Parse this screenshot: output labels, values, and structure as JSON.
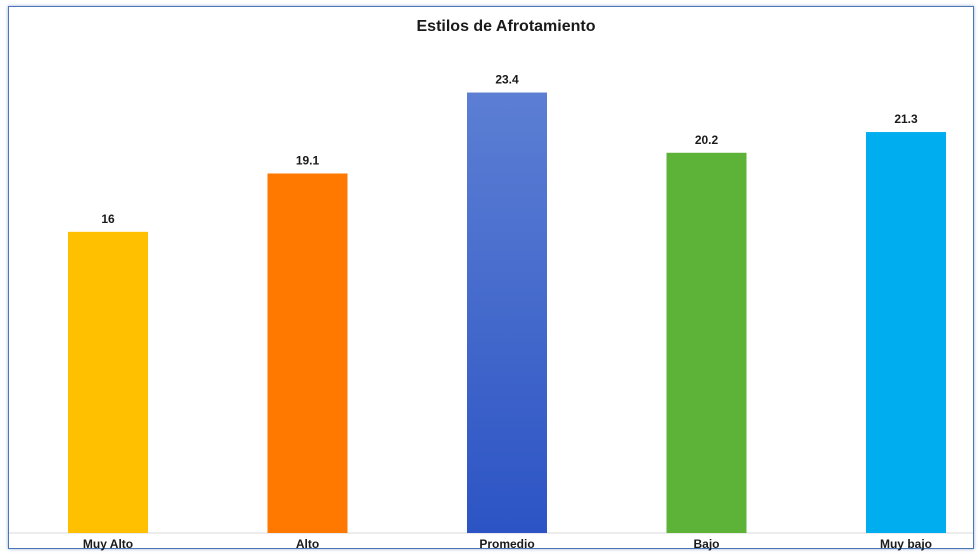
{
  "chart_data": {
    "type": "bar",
    "title": "Estilos de Afrotamiento",
    "categories": [
      "Muy Alto",
      "Alto",
      "Promedio",
      "Bajo",
      "Muy bajo"
    ],
    "values": [
      16,
      19.1,
      23.4,
      20.2,
      21.3
    ],
    "value_labels": [
      "16",
      "19.1",
      "23.4",
      "20.2",
      "21.3"
    ],
    "colors": [
      "#FFC000",
      "#FF7800",
      "#3A5FCD",
      "#5CB338",
      "#00AEEF"
    ],
    "ylim": [
      0,
      25.5
    ],
    "grid": false,
    "legend": "none"
  }
}
